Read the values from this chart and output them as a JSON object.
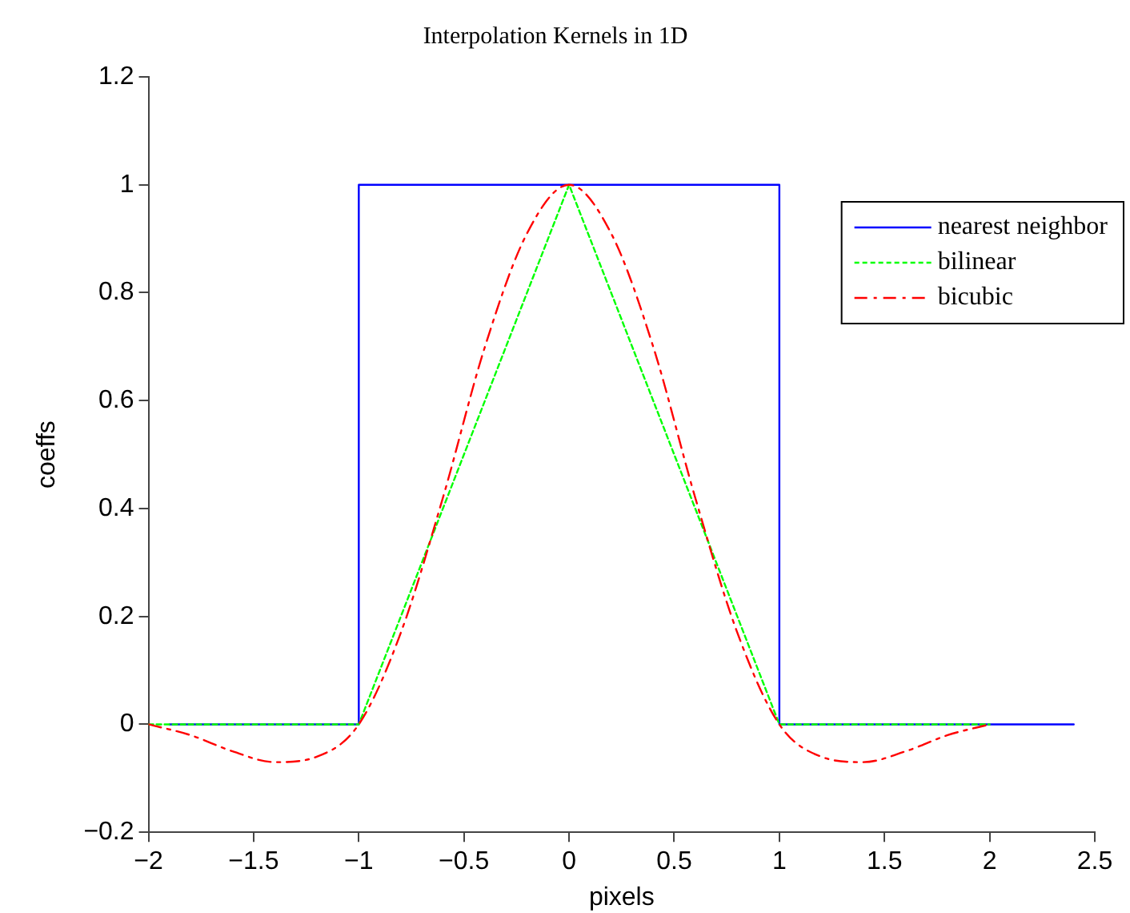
{
  "chart_data": {
    "type": "line",
    "title": "Interpolation Kernels in 1D",
    "xlabel": "pixels",
    "ylabel": "coeffs",
    "xlim": [
      -2,
      2.5
    ],
    "ylim": [
      -0.2,
      1.2
    ],
    "xticks": [
      {
        "value": -2,
        "label": "−2"
      },
      {
        "value": -1.5,
        "label": "−1.5"
      },
      {
        "value": -1,
        "label": "−1"
      },
      {
        "value": -0.5,
        "label": "−0.5"
      },
      0,
      0.5,
      1,
      1.5,
      2,
      2.5
    ],
    "yticks": [
      {
        "value": -0.2,
        "label": "−0.2"
      },
      0,
      0.2,
      0.4,
      0.6,
      0.8,
      1,
      1.2
    ],
    "grid": false,
    "legend": "top right",
    "marker": "none",
    "series": [
      {
        "name": "nearest neighbor",
        "color": "#0000ff",
        "line_style": "solid",
        "x": [
          -1.9,
          -1,
          -1,
          1,
          1,
          2.4
        ],
        "values": [
          0,
          0,
          1,
          1,
          0,
          0
        ]
      },
      {
        "name": "bilinear",
        "color": "#00ff00",
        "line_style": "dashed",
        "x": [
          -2,
          -1,
          0,
          1,
          2
        ],
        "values": [
          0,
          0,
          1,
          0,
          0
        ]
      },
      {
        "name": "bicubic",
        "color": "#ff0000",
        "line_style": "dashdot",
        "x": [
          -2,
          -1.8,
          -1.6,
          -1.4,
          -1.2,
          -1,
          -0.8,
          -0.6,
          -0.4,
          -0.2,
          0,
          0.2,
          0.4,
          0.6,
          0.8,
          1,
          1.2,
          1.4,
          1.6,
          1.8,
          2
        ],
        "values": [
          0,
          -0.02,
          -0.05,
          -0.07,
          -0.06,
          0,
          0.17,
          0.42,
          0.7,
          0.91,
          1,
          0.91,
          0.7,
          0.42,
          0.17,
          0,
          -0.06,
          -0.07,
          -0.05,
          -0.02,
          0
        ]
      }
    ]
  }
}
